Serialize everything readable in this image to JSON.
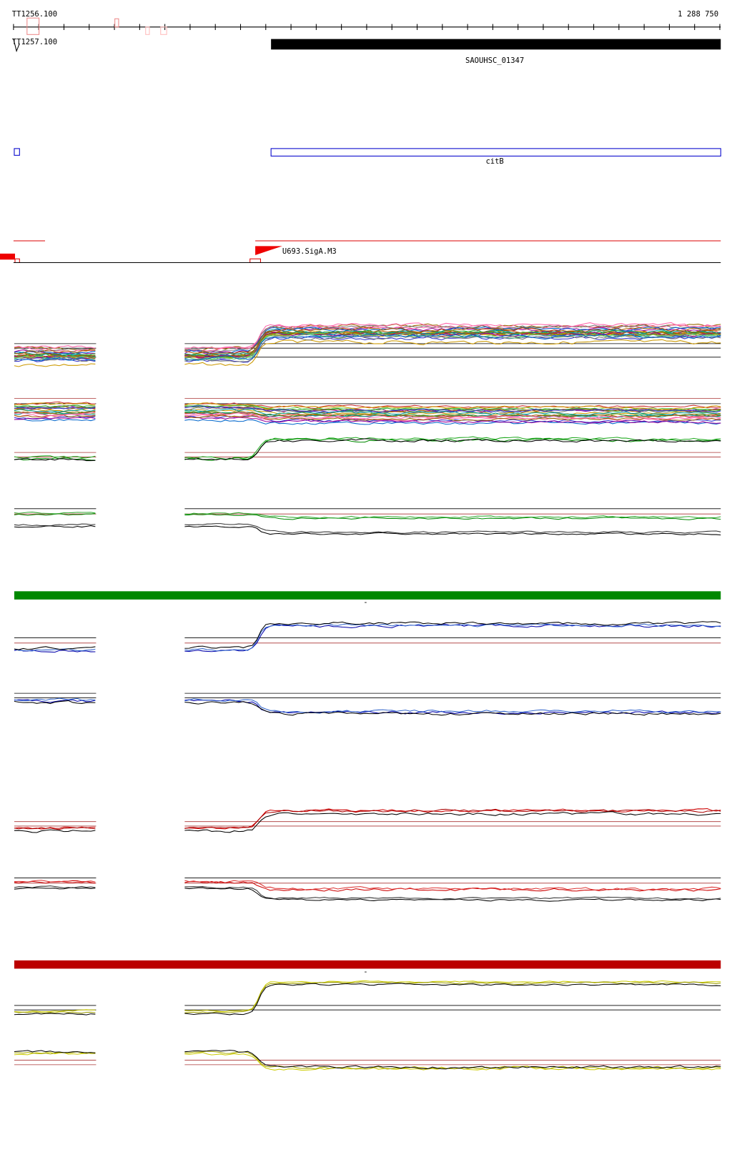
{
  "ruler": {
    "start_label": "TT1256.100",
    "end_label": "1 288 750",
    "second_label": "TT1257.100"
  },
  "tracks": {
    "gene": "SAOUHSC_01347",
    "operon": "citB",
    "promoter": "U693.SigA.M3",
    "green_strand": "-",
    "red_strand": "-"
  }
}
